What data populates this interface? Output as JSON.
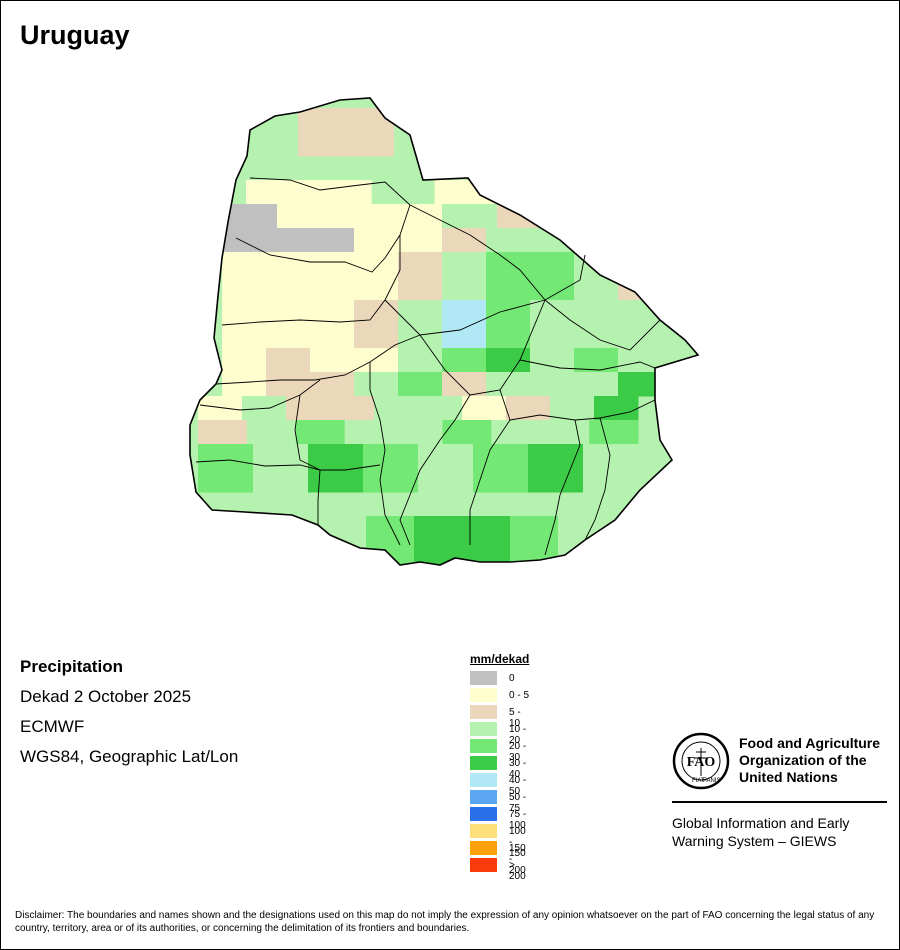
{
  "map": {
    "title": "Uruguay",
    "variable": "Precipitation",
    "period": "Dekad 2 October 2025",
    "model": "ECMWF",
    "projection": "WGS84, Geographic Lat/Lon",
    "country_outline": "Uruguay national boundary with departmental boundaries",
    "grid_classes": [
      "5-10",
      "5-10",
      "10-20",
      "20-30",
      "10-20",
      "0-5",
      "0-5",
      "10-20",
      "0-5",
      "5-10",
      "5-10",
      "10-20",
      "0",
      "0-5",
      "0-5",
      "0-5",
      "10-20",
      "5-10",
      "5-10",
      "10-20",
      "0",
      "0",
      "0",
      "0-5",
      "0-5",
      "5-10",
      "10-20",
      "10-20",
      "5-10",
      "5-10",
      "0-5",
      "0-5",
      "0-5",
      "0-5",
      "5-10",
      "10-20",
      "20-30",
      "20-30",
      "10-20",
      "5-10",
      "0-5",
      "0-5",
      "0-5",
      "5-10",
      "10-20",
      "40-50",
      "20-30",
      "10-20",
      "10-20",
      "10-20",
      "0-5",
      "5-10",
      "0-5",
      "0-5",
      "10-20",
      "20-30",
      "30-40",
      "10-20",
      "20-30",
      "10-20",
      "0-5",
      "5-10",
      "5-10",
      "10-20",
      "20-30",
      "5-10",
      "10-20",
      "10-20",
      "10-20",
      "30-40",
      "0-5",
      "10-20",
      "5-10",
      "5-10",
      "10-20",
      "10-20",
      "0-5",
      "5-10",
      "10-20",
      "30-40",
      "5-10",
      "10-20",
      "20-30",
      "10-20",
      "10-20",
      "20-30",
      "10-20",
      "10-20",
      "20-30",
      "20-30",
      "10-20",
      "30-40",
      "20-30",
      "10-20",
      "20-30",
      "30-40",
      "10-20",
      "10-20",
      "20-30",
      "30-40",
      "30-40",
      "20-30",
      "10-20"
    ]
  },
  "legend": {
    "title": "mm/dekad",
    "items": [
      {
        "label": "0",
        "color": "#c0c0c0"
      },
      {
        "label": "0 - 5",
        "color": "#fdfdcd"
      },
      {
        "label": "5 - 10",
        "color": "#ebd7b9"
      },
      {
        "label": "10 - 20",
        "color": "#b6f2af"
      },
      {
        "label": "20 - 30",
        "color": "#74e874"
      },
      {
        "label": "30 - 40",
        "color": "#3bcb46"
      },
      {
        "label": "40 - 50",
        "color": "#b0e8f5"
      },
      {
        "label": "50 - 75",
        "color": "#5aa6f0"
      },
      {
        "label": "75 - 100",
        "color": "#2a6fea"
      },
      {
        "label": "100 - 150",
        "color": "#fde07a"
      },
      {
        "label": "150 - 200",
        "color": "#fca10a"
      },
      {
        "label": "> 200",
        "color": "#fb3a0a"
      }
    ]
  },
  "fao": {
    "org": "Food and Agriculture Organization of the United Nations",
    "giews": "Global Information and Early Warning System – GIEWS",
    "logo_text": "FAO FIAT PANIS"
  },
  "disclaimer": "Disclaimer: The boundaries and names shown and the designations used on this map do not imply the expression of any opinion whatsoever on the part of FAO concerning the legal status of any country, territory, area or of its authorities, or concerning the delimitation of its frontiers and boundaries."
}
